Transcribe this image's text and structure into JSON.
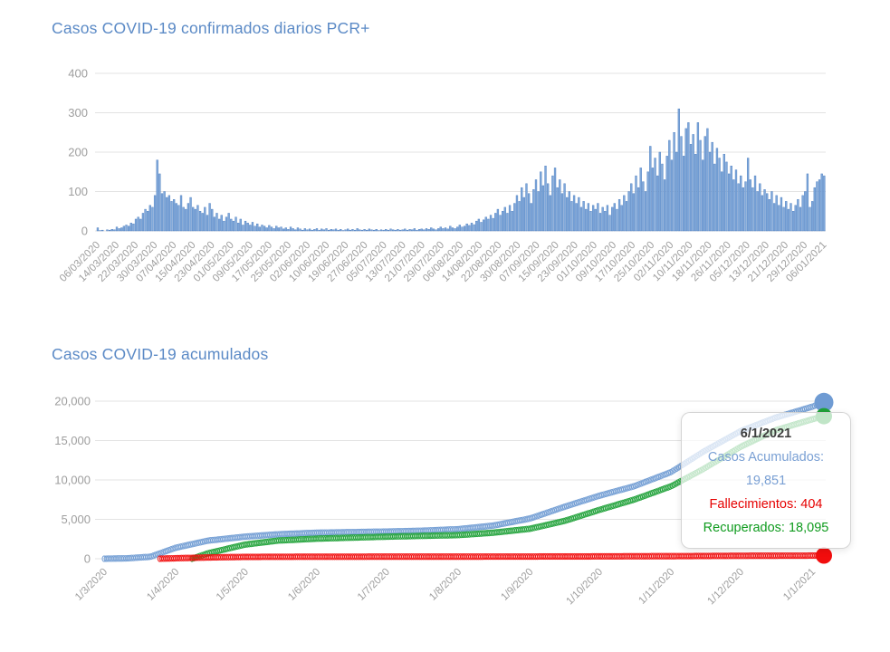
{
  "daily_chart": {
    "title": "Casos COVID-19 confirmados diarios PCR+"
  },
  "cumulative_chart": {
    "title": "Casos COVID-19 acumulados"
  },
  "tooltip": {
    "date": "6/1/2021",
    "accumulated": "Casos Acumulados: 19,851",
    "deaths": "Fallecimientos: 404",
    "recovered": "Recuperados: 18,095"
  },
  "colors": {
    "title_blue": "#5b8ac6",
    "bar_fill": "#7fa8da",
    "bar_stroke": "#4779bd",
    "grid": "#e3e3e3",
    "axis_text": "#9e9e9e",
    "series_blue": "#6f9bd3",
    "series_green": "#1ea137",
    "series_red": "#f20d0d"
  },
  "chart_data": [
    {
      "type": "bar",
      "title": "Casos COVID-19 confirmados diarios PCR+",
      "ylabel": "",
      "xlabel": "",
      "ylim": [
        0,
        400
      ],
      "yticks": [
        0,
        100,
        200,
        300,
        400
      ],
      "ytick_labels": [
        "0",
        "100",
        "200",
        "300",
        "400"
      ],
      "grid": "horizontal",
      "tick_labels": [
        "06/03/2020",
        "14/03/2020",
        "22/03/2020",
        "30/03/2020",
        "07/04/2020",
        "15/04/2020",
        "23/04/2020",
        "01/05/2020",
        "09/05/2020",
        "17/05/2020",
        "25/05/2020",
        "02/06/2020",
        "10/06/2020",
        "19/06/2020",
        "27/06/2020",
        "05/07/2020",
        "13/07/2020",
        "21/07/2020",
        "29/07/2020",
        "06/08/2020",
        "14/08/2020",
        "22/08/2020",
        "30/08/2020",
        "07/09/2020",
        "15/09/2020",
        "23/09/2020",
        "01/10/2020",
        "09/10/2020",
        "17/10/2020",
        "25/10/2020",
        "02/11/2020",
        "10/11/2020",
        "18/11/2020",
        "26/11/2020",
        "05/12/2020",
        "13/12/2020",
        "21/12/2020",
        "29/12/2020",
        "06/01/2021"
      ],
      "values": [
        8,
        1,
        2,
        0,
        3,
        2,
        4,
        3,
        10,
        6,
        8,
        12,
        15,
        12,
        20,
        18,
        30,
        35,
        30,
        45,
        55,
        50,
        65,
        60,
        90,
        180,
        145,
        95,
        100,
        85,
        90,
        75,
        80,
        70,
        65,
        90,
        60,
        55,
        70,
        85,
        60,
        55,
        65,
        50,
        45,
        60,
        40,
        70,
        55,
        35,
        45,
        30,
        40,
        25,
        35,
        45,
        30,
        25,
        35,
        20,
        30,
        15,
        25,
        20,
        15,
        22,
        12,
        18,
        10,
        15,
        12,
        8,
        14,
        10,
        6,
        12,
        8,
        10,
        5,
        8,
        4,
        10,
        6,
        3,
        8,
        5,
        2,
        6,
        3,
        5,
        2,
        4,
        6,
        2,
        5,
        3,
        6,
        2,
        4,
        3,
        5,
        2,
        4,
        1,
        3,
        5,
        2,
        4,
        2,
        6,
        3,
        2,
        4,
        2,
        5,
        3,
        2,
        4,
        1,
        3,
        2,
        4,
        2,
        5,
        3,
        2,
        4,
        2,
        3,
        5,
        2,
        4,
        3,
        6,
        2,
        4,
        5,
        3,
        6,
        4,
        8,
        5,
        3,
        6,
        10,
        6,
        8,
        5,
        12,
        8,
        6,
        10,
        15,
        10,
        12,
        18,
        14,
        20,
        16,
        25,
        30,
        22,
        28,
        35,
        30,
        40,
        32,
        45,
        55,
        40,
        50,
        60,
        45,
        65,
        50,
        70,
        90,
        75,
        110,
        85,
        120,
        95,
        70,
        105,
        130,
        100,
        150,
        115,
        165,
        120,
        90,
        140,
        160,
        110,
        130,
        95,
        120,
        85,
        100,
        75,
        90,
        70,
        85,
        60,
        75,
        55,
        70,
        50,
        65,
        55,
        70,
        45,
        60,
        50,
        65,
        40,
        60,
        70,
        55,
        80,
        65,
        90,
        75,
        100,
        120,
        95,
        140,
        110,
        160,
        125,
        100,
        150,
        215,
        160,
        185,
        140,
        200,
        170,
        130,
        190,
        230,
        180,
        250,
        200,
        310,
        240,
        190,
        260,
        275,
        220,
        245,
        195,
        275,
        230,
        180,
        240,
        260,
        200,
        225,
        170,
        210,
        185,
        150,
        195,
        175,
        145,
        165,
        130,
        155,
        120,
        140,
        110,
        125,
        185,
        130,
        110,
        140,
        100,
        120,
        90,
        105,
        95,
        80,
        100,
        70,
        90,
        65,
        85,
        60,
        75,
        55,
        70,
        50,
        65,
        80,
        60,
        90,
        100,
        145,
        60,
        75,
        110,
        125,
        130,
        145,
        140
      ]
    },
    {
      "type": "line",
      "title": "Casos COVID-19 acumulados",
      "marker": "ring",
      "ylim": [
        0,
        20000
      ],
      "yticks": [
        0,
        5000,
        10000,
        15000,
        20000
      ],
      "ytick_labels": [
        "0",
        "5,000",
        "10,000",
        "15,000",
        "20,000"
      ],
      "grid": "horizontal",
      "x_tick_labels": [
        "1/3/2020",
        "1/4/2020",
        "1/5/2020",
        "1/6/2020",
        "1/7/2020",
        "1/8/2020",
        "1/9/2020",
        "1/10/2020",
        "1/11/2020",
        "1/12/2020",
        "1/1/2021"
      ],
      "x_tick_days": [
        0,
        31,
        61,
        92,
        122,
        153,
        184,
        214,
        245,
        275,
        306
      ],
      "total_days": 311,
      "series": [
        {
          "name": "Casos Acumulados",
          "color": "#6f9bd3",
          "end_value": 19851,
          "points": [
            [
              0,
              0
            ],
            [
              10,
              50
            ],
            [
              20,
              250
            ],
            [
              31,
              1400
            ],
            [
              45,
              2300
            ],
            [
              61,
              2800
            ],
            [
              75,
              3100
            ],
            [
              92,
              3300
            ],
            [
              122,
              3450
            ],
            [
              137,
              3550
            ],
            [
              153,
              3750
            ],
            [
              168,
              4200
            ],
            [
              184,
              5100
            ],
            [
              199,
              6600
            ],
            [
              214,
              8000
            ],
            [
              229,
              9200
            ],
            [
              245,
              11000
            ],
            [
              259,
              13600
            ],
            [
              275,
              16200
            ],
            [
              290,
              17900
            ],
            [
              306,
              19300
            ],
            [
              311,
              19851
            ]
          ]
        },
        {
          "name": "Recuperados",
          "color": "#1ea137",
          "end_value": 18095,
          "points": [
            [
              38,
              0
            ],
            [
              45,
              700
            ],
            [
              61,
              1800
            ],
            [
              75,
              2300
            ],
            [
              92,
              2550
            ],
            [
              122,
              2800
            ],
            [
              153,
              3000
            ],
            [
              168,
              3300
            ],
            [
              184,
              3800
            ],
            [
              199,
              4800
            ],
            [
              214,
              6200
            ],
            [
              229,
              7500
            ],
            [
              245,
              9200
            ],
            [
              259,
              11400
            ],
            [
              275,
              14200
            ],
            [
              290,
              16300
            ],
            [
              306,
              17700
            ],
            [
              311,
              18095
            ]
          ]
        },
        {
          "name": "Fallecimientos",
          "color": "#f20d0d",
          "end_value": 404,
          "points": [
            [
              24,
              0
            ],
            [
              31,
              60
            ],
            [
              45,
              160
            ],
            [
              61,
              230
            ],
            [
              92,
              255
            ],
            [
              122,
              260
            ],
            [
              153,
              265
            ],
            [
              184,
              280
            ],
            [
              214,
              295
            ],
            [
              245,
              325
            ],
            [
              275,
              370
            ],
            [
              306,
              398
            ],
            [
              311,
              404
            ]
          ]
        }
      ],
      "tooltip": {
        "date": "6/1/2021",
        "casos_acumulados": 19851,
        "fallecimientos": 404,
        "recuperados": 18095
      }
    }
  ]
}
